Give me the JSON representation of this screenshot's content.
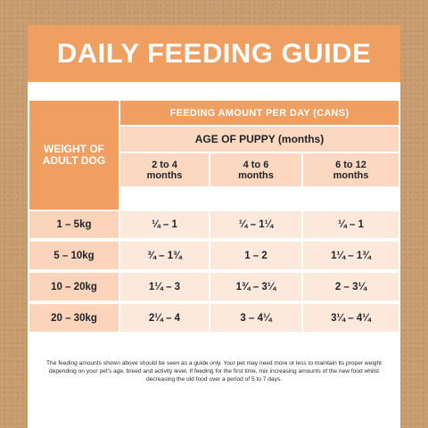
{
  "title": "DAILY FEEDING GUIDE",
  "table": {
    "weight_header": "WEIGHT OF ADULT DOG",
    "feeding_header": "FEEDING AMOUNT PER DAY (CANS)",
    "age_header": "AGE OF PUPPY (months)",
    "age_columns": [
      "2 to 4 months",
      "4 to 6 months",
      "6 to 12 months"
    ],
    "rows": [
      {
        "weight": "1 – 5kg",
        "values": [
          "¼ – 1",
          "¼ – 1¼",
          "¼ – 1"
        ]
      },
      {
        "weight": "5 – 10kg",
        "values": [
          "¾ – 1¾",
          "1 – 2",
          "1¼ – 1¾"
        ]
      },
      {
        "weight": "10 – 20kg",
        "values": [
          "1¼ – 3",
          "1¾ – 3¼",
          "2 – 3¼"
        ]
      },
      {
        "weight": "20 – 30kg",
        "values": [
          "2¼ – 4",
          "3 – 4¼",
          "3¼ – 4¼"
        ]
      }
    ]
  },
  "footnote": "The feeding amounts shown above should be seen as a guide only. Your pet may need more or less to maintain its proper weight depending on your pet's age, breed and activity level. If feeding for the first time, mix increasing amounts of the new food whilst decreasing the old food over a period of 5 to 7 days.",
  "colors": {
    "background": "#c79b6e",
    "accent_orange": "#ef9f61",
    "header_peach": "#fcd8c1",
    "weight_cell": "#fbd4bb",
    "value_cell": "#fde8dc"
  }
}
